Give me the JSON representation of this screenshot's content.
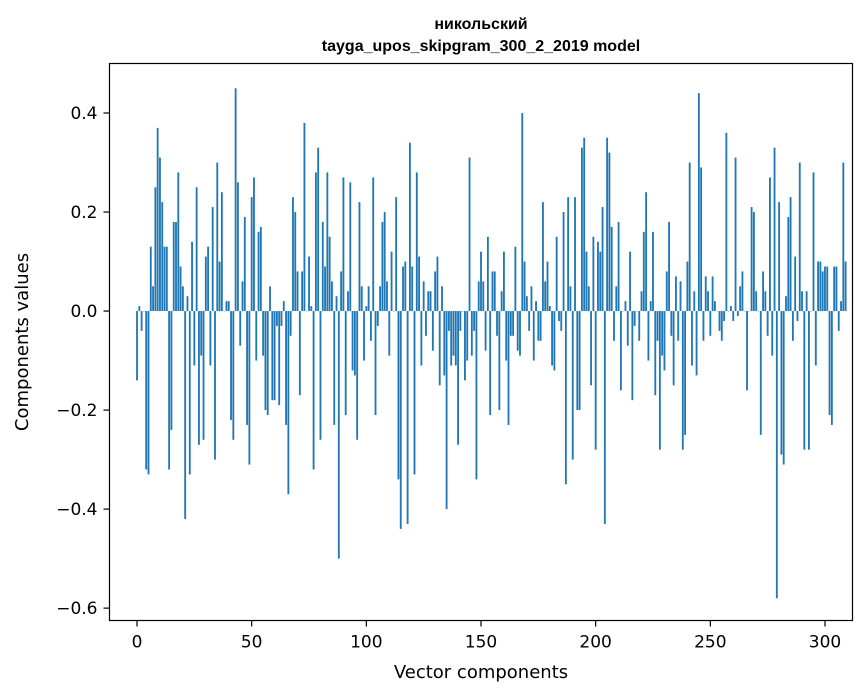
{
  "chart_data": {
    "type": "bar",
    "title": "никольский",
    "subtitle": "tayga_upos_skipgram_300_2_2019 model",
    "xlabel": "Vector components",
    "ylabel": "Components values",
    "xlim": [
      -12,
      312
    ],
    "ylim": [
      -0.625,
      0.5
    ],
    "xticks": [
      0,
      50,
      100,
      150,
      200,
      250,
      300
    ],
    "xtick_labels": [
      "0",
      "50",
      "100",
      "150",
      "200",
      "250",
      "300"
    ],
    "yticks": [
      -0.6,
      -0.4,
      -0.2,
      0.0,
      0.2,
      0.4
    ],
    "ytick_labels": [
      "−0.6",
      "−0.4",
      "−0.2",
      "0.0",
      "0.2",
      "0.4"
    ],
    "grid": false,
    "bar_color": "#1f77b4",
    "values": [
      -0.14,
      0.01,
      -0.04,
      0.0,
      -0.32,
      -0.33,
      0.13,
      0.05,
      0.25,
      0.37,
      0.31,
      0.22,
      0.13,
      0.13,
      -0.32,
      -0.24,
      0.18,
      0.18,
      0.28,
      0.09,
      0.05,
      -0.42,
      0.03,
      -0.33,
      0.14,
      -0.11,
      0.25,
      -0.27,
      -0.09,
      -0.26,
      0.11,
      0.13,
      -0.11,
      0.21,
      -0.3,
      0.3,
      0.1,
      0.24,
      0.0,
      0.02,
      0.02,
      -0.22,
      -0.26,
      0.45,
      0.26,
      -0.07,
      0.06,
      0.19,
      -0.23,
      -0.31,
      0.23,
      0.27,
      -0.1,
      0.16,
      0.17,
      -0.09,
      -0.2,
      -0.21,
      0.05,
      -0.18,
      -0.18,
      -0.03,
      -0.19,
      -0.03,
      0.02,
      -0.23,
      -0.37,
      -0.05,
      0.23,
      0.2,
      0.08,
      -0.17,
      0.08,
      0.38,
      0.0,
      0.11,
      0.01,
      -0.32,
      0.28,
      0.33,
      -0.26,
      0.18,
      0.09,
      0.28,
      0.15,
      0.06,
      -0.23,
      0.03,
      -0.5,
      0.08,
      0.27,
      -0.21,
      0.04,
      0.26,
      -0.12,
      -0.13,
      -0.26,
      0.22,
      0.05,
      -0.1,
      0.01,
      0.05,
      -0.06,
      0.27,
      -0.21,
      -0.03,
      0.05,
      0.18,
      0.2,
      0.06,
      -0.09,
      0.12,
      0.0,
      0.23,
      -0.34,
      -0.44,
      0.09,
      0.1,
      -0.43,
      0.34,
      0.09,
      -0.33,
      0.28,
      0.11,
      -0.11,
      0.06,
      -0.05,
      0.04,
      0.04,
      -0.08,
      0.08,
      0.11,
      -0.15,
      0.05,
      -0.13,
      -0.4,
      -0.04,
      -0.11,
      -0.09,
      -0.11,
      -0.27,
      -0.04,
      0.0,
      -0.14,
      -0.1,
      0.31,
      -0.09,
      -0.04,
      -0.34,
      0.06,
      0.12,
      0.06,
      -0.08,
      0.15,
      -0.21,
      0.08,
      0.08,
      -0.05,
      -0.2,
      0.04,
      0.12,
      -0.1,
      -0.23,
      -0.05,
      -0.05,
      0.13,
      -0.08,
      -0.09,
      0.4,
      0.1,
      0.03,
      -0.04,
      0.05,
      -0.1,
      0.02,
      -0.06,
      -0.06,
      0.22,
      0.06,
      0.1,
      0.01,
      -0.11,
      -0.12,
      0.15,
      -0.02,
      -0.04,
      0.2,
      -0.35,
      0.23,
      0.05,
      -0.3,
      0.23,
      -0.2,
      -0.2,
      0.33,
      0.35,
      0.12,
      0.05,
      -0.15,
      0.15,
      -0.28,
      0.14,
      0.12,
      0.21,
      -0.43,
      0.35,
      0.32,
      0.17,
      -0.06,
      0.05,
      0.18,
      -0.16,
      0.0,
      0.02,
      -0.07,
      0.12,
      -0.18,
      -0.03,
      0.0,
      -0.06,
      0.04,
      0.16,
      0.24,
      -0.1,
      0.02,
      0.16,
      -0.17,
      -0.06,
      -0.28,
      -0.09,
      -0.12,
      0.08,
      0.18,
      -0.05,
      -0.15,
      0.07,
      -0.06,
      0.06,
      -0.28,
      -0.25,
      0.1,
      0.3,
      -0.11,
      0.04,
      -0.13,
      0.44,
      0.29,
      -0.06,
      0.07,
      0.04,
      -0.05,
      0.07,
      0.02,
      0.0,
      -0.04,
      -0.06,
      -0.02,
      0.36,
      0.0,
      0.01,
      -0.02,
      0.31,
      -0.01,
      0.05,
      0.08,
      0.0,
      -0.16,
      0.0,
      0.21,
      0.2,
      0.04,
      0.0,
      -0.25,
      0.08,
      0.04,
      -0.05,
      0.27,
      -0.09,
      0.33,
      -0.58,
      0.22,
      -0.29,
      -0.31,
      0.03,
      0.19,
      0.23,
      -0.06,
      0.11,
      -0.02,
      0.3,
      0.04,
      -0.28,
      0.04,
      -0.28,
      0.0,
      0.28,
      -0.11,
      0.1,
      0.1,
      0.08,
      0.09,
      0.09,
      -0.21,
      -0.23,
      0.09,
      0.09,
      -0.04,
      0.02,
      0.3,
      0.1
    ]
  }
}
